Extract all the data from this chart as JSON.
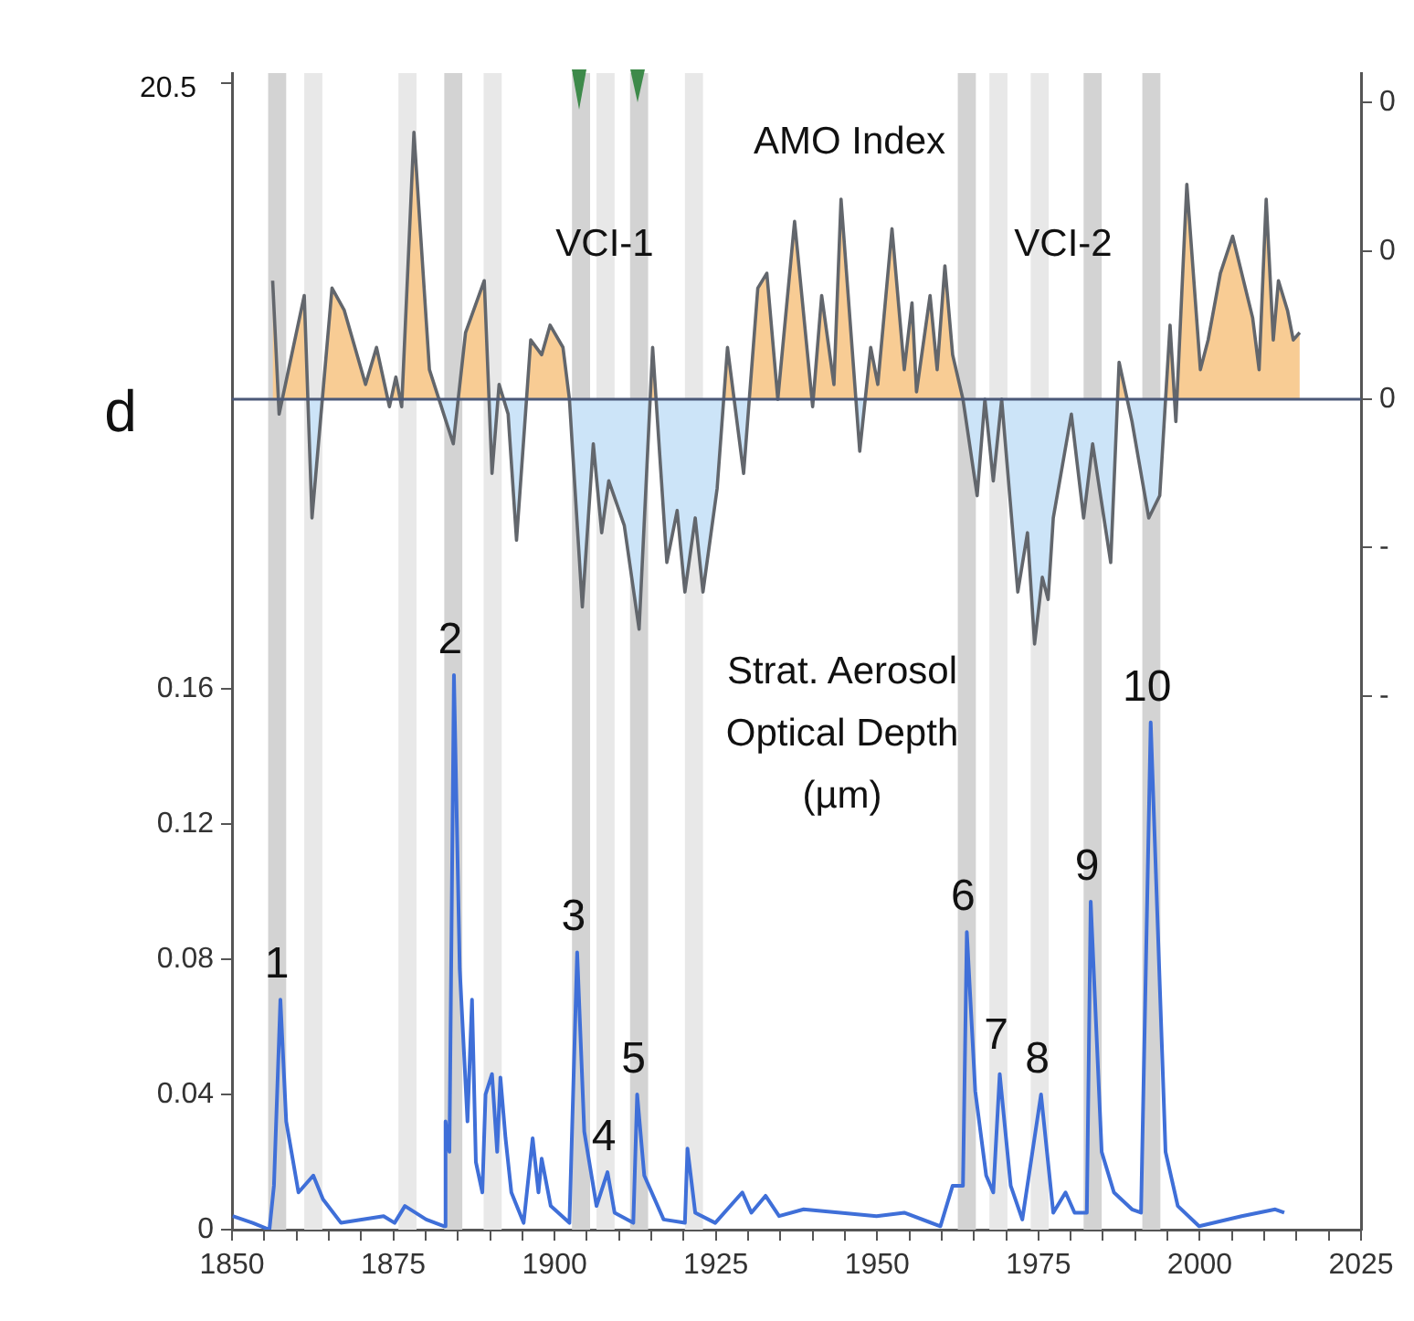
{
  "chart_data": {
    "type": "line",
    "annotations": [
      "d",
      "VCI-1",
      "VCI-2",
      "AMO Index",
      "Strat. Aerosol Optical Depth (µm)",
      "20.5",
      {
        "text": "1",
        "x": 1857.5,
        "y": 0.068
      },
      {
        "text": "2",
        "x": 1884.4,
        "y": 0.164
      },
      {
        "text": "3",
        "x": 1903.5,
        "y": 0.082
      },
      {
        "text": "4",
        "x": 1908.2,
        "y": 0.017
      },
      {
        "text": "5",
        "x": 1912.8,
        "y": 0.04
      },
      {
        "text": "6",
        "x": 1963.9,
        "y": 0.088
      },
      {
        "text": "7",
        "x": 1969,
        "y": 0.047
      },
      {
        "text": "8",
        "x": 1975.4,
        "y": 0.04
      },
      {
        "text": "9",
        "x": 1983.1,
        "y": 0.097
      },
      {
        "text": "10",
        "x": 1992.4,
        "y": 0.15
      }
    ],
    "xlim": [
      1850,
      2025
    ],
    "xticks": [
      1850,
      {
        "value": 1855,
        "label": null
      },
      {
        "value": 1860,
        "label": null
      },
      {
        "value": 1865,
        "label": null
      },
      {
        "value": 1870,
        "label": null
      },
      1875,
      {
        "value": 1880,
        "label": null
      },
      {
        "value": 1885,
        "label": null
      },
      {
        "value": 1890,
        "label": null
      },
      {
        "value": 1895,
        "label": null
      },
      1900,
      {
        "value": 1905,
        "label": null
      },
      {
        "value": 1910,
        "label": null
      },
      {
        "value": 1915,
        "label": null
      },
      {
        "value": 1920,
        "label": null
      },
      1925,
      {
        "value": 1930,
        "label": null
      },
      {
        "value": 1935,
        "label": null
      },
      {
        "value": 1940,
        "label": null
      },
      {
        "value": 1945,
        "label": null
      },
      1950,
      {
        "value": 1955,
        "label": null
      },
      {
        "value": 1960,
        "label": null
      },
      {
        "value": 1965,
        "label": null
      },
      {
        "value": 1970,
        "label": null
      },
      1975,
      {
        "value": 1980,
        "label": null
      },
      {
        "value": 1985,
        "label": null
      },
      {
        "value": 1990,
        "label": null
      },
      {
        "value": 1995,
        "label": null
      },
      2000,
      {
        "value": 2005,
        "label": null
      },
      {
        "value": 2010,
        "label": null
      },
      {
        "value": 2015,
        "label": null
      },
      {
        "value": 2020,
        "label": null
      },
      2025
    ],
    "ylim": [
      0,
      0.342
    ],
    "yticks": [
      0,
      0.04,
      0.08,
      0.12,
      0.16,
      {
        "value": 0.339,
        "label": null
      }
    ],
    "y2lim": [
      -1.12,
      0.44
    ],
    "y2ticks": [
      {
        "value": 0.4,
        "label": "0"
      },
      {
        "value": 0.2,
        "label": "0"
      },
      {
        "value": 0,
        "label": "0"
      },
      {
        "value": -0.2,
        "label": "-"
      },
      {
        "value": -0.4,
        "label": "-"
      }
    ],
    "grid": false,
    "legend": false,
    "marker": "none",
    "line_style": "solid",
    "ref_lines": [
      {
        "axis": "y2",
        "value": 0,
        "color": "#4a5878"
      }
    ],
    "bands": [
      {
        "axis": "x",
        "from": 1855.6,
        "to": 1858.4,
        "color": "#d3d3d3"
      },
      {
        "axis": "x",
        "from": 1861.2,
        "to": 1864,
        "color": "#e8e8e8"
      },
      {
        "axis": "x",
        "from": 1875.8,
        "to": 1878.6,
        "color": "#e8e8e8"
      },
      {
        "axis": "x",
        "from": 1882.9,
        "to": 1885.7,
        "color": "#d3d3d3"
      },
      {
        "axis": "x",
        "from": 1889,
        "to": 1891.8,
        "color": "#e8e8e8"
      },
      {
        "axis": "x",
        "from": 1902.7,
        "to": 1905.5,
        "color": "#d3d3d3"
      },
      {
        "axis": "x",
        "from": 1906.5,
        "to": 1909.3,
        "color": "#e8e8e8"
      },
      {
        "axis": "x",
        "from": 1911.7,
        "to": 1914.5,
        "color": "#d3d3d3"
      },
      {
        "axis": "x",
        "from": 1920.2,
        "to": 1923,
        "color": "#e8e8e8"
      },
      {
        "axis": "x",
        "from": 1962.5,
        "to": 1965.3,
        "color": "#d3d3d3"
      },
      {
        "axis": "x",
        "from": 1967.4,
        "to": 1970.2,
        "color": "#e8e8e8"
      },
      {
        "axis": "x",
        "from": 1973.8,
        "to": 1976.6,
        "color": "#e8e8e8"
      },
      {
        "axis": "x",
        "from": 1982,
        "to": 1984.8,
        "color": "#d3d3d3"
      },
      {
        "axis": "x",
        "from": 1991.1,
        "to": 1993.9,
        "color": "#d3d3d3"
      }
    ],
    "series": [
      {
        "color": "#3f6fd8",
        "x": [
          1850.1,
          1853.2,
          1855.8,
          1856.5,
          1857.5,
          1858.4,
          1860.3,
          1862.6,
          1864.1,
          1866.9,
          1873.5,
          1875.2,
          1876.8,
          1880.1,
          1882.9,
          1883.1,
          1883.7,
          1884.4,
          1885.3,
          1886.5,
          1887.2,
          1887.8,
          1888.8,
          1889.3,
          1890.3,
          1891.1,
          1891.6,
          1892.4,
          1893.3,
          1895.2,
          1896.6,
          1897.5,
          1898,
          1899.4,
          1902.3,
          1903.5,
          1904.6,
          1906.5,
          1908.2,
          1909.3,
          1912.2,
          1912.8,
          1913.9,
          1916.9,
          1920.2,
          1920.6,
          1921.8,
          1924.9,
          1929.1,
          1930.5,
          1932.7,
          1934.8,
          1938.6,
          1944.3,
          1949.9,
          1954.2,
          1959.8,
          1961.7,
          1963.3,
          1963.9,
          1965.2,
          1966.9,
          1968,
          1969,
          1970.7,
          1972.5,
          1975.4,
          1977.3,
          1979.2,
          1980.6,
          1982.5,
          1983.1,
          1984.8,
          1986.7,
          1989.5,
          1990.9,
          1992.4,
          1994.7,
          1996.6,
          1999.9,
          2006.5,
          2011.7,
          2013.1
        ],
        "values": [
          0.004,
          0.002,
          0,
          0.013,
          0.068,
          0.032,
          0.011,
          0.016,
          0.009,
          0.002,
          0.004,
          0.002,
          0.007,
          0.003,
          0.001,
          0.032,
          0.023,
          0.164,
          0.077,
          0.032,
          0.068,
          0.02,
          0.011,
          0.04,
          0.046,
          0.023,
          0.045,
          0.027,
          0.011,
          0.002,
          0.027,
          0.011,
          0.021,
          0.007,
          0.002,
          0.082,
          0.029,
          0.007,
          0.017,
          0.005,
          0.002,
          0.04,
          0.016,
          0.003,
          0.002,
          0.024,
          0.005,
          0.002,
          0.011,
          0.005,
          0.01,
          0.004,
          0.006,
          0.005,
          0.004,
          0.005,
          0.001,
          0.013,
          0.013,
          0.088,
          0.041,
          0.016,
          0.011,
          0.046,
          0.013,
          0.003,
          0.04,
          0.005,
          0.011,
          0.005,
          0.005,
          0.097,
          0.023,
          0.011,
          0.006,
          0.005,
          0.15,
          0.023,
          0.007,
          0.001,
          0.004,
          0.006,
          0.005
        ]
      },
      {
        "type": "area",
        "axis": "y2",
        "color": "#62666c",
        "x": [
          1856.3,
          1857.3,
          1861.2,
          1862.4,
          1865.5,
          1867.4,
          1870.7,
          1872.4,
          1874.4,
          1875.4,
          1876.3,
          1878.2,
          1880.6,
          1884.3,
          1886.2,
          1889.1,
          1890.3,
          1891.4,
          1892.8,
          1894.1,
          1896.3,
          1898,
          1899.3,
          1901.3,
          1902.3,
          1904.3,
          1906,
          1907.3,
          1908.4,
          1910.8,
          1913.1,
          1915.2,
          1917.4,
          1919,
          1920.2,
          1921.8,
          1923,
          1925.2,
          1926.8,
          1929.3,
          1931.5,
          1932.9,
          1934.6,
          1937.2,
          1940,
          1941.4,
          1943.3,
          1944.4,
          1947.3,
          1949,
          1950.1,
          1952.3,
          1954.2,
          1955.4,
          1956.1,
          1958.2,
          1959.3,
          1960.5,
          1961.7,
          1963.3,
          1965.5,
          1966.7,
          1968,
          1969.3,
          1971.8,
          1973.3,
          1974.4,
          1975.6,
          1976.5,
          1977.3,
          1980.1,
          1982,
          1983.4,
          1986.2,
          1987.5,
          1989.5,
          1992.1,
          1993.8,
          1995.4,
          1996.3,
          1998,
          2000.1,
          2001.3,
          2003.2,
          2005.1,
          2008.2,
          2009.2,
          2010.3,
          2011.4,
          2012.2,
          2013.6,
          2014.5,
          2015.5
        ],
        "values": [
          0.16,
          -0.02,
          0.14,
          -0.16,
          0.15,
          0.12,
          0.02,
          0.07,
          -0.01,
          0.03,
          -0.01,
          0.36,
          0.04,
          -0.06,
          0.09,
          0.16,
          -0.1,
          0.02,
          -0.02,
          -0.19,
          0.08,
          0.06,
          0.1,
          0.07,
          0,
          -0.28,
          -0.06,
          -0.18,
          -0.11,
          -0.17,
          -0.31,
          0.07,
          -0.22,
          -0.15,
          -0.26,
          -0.16,
          -0.26,
          -0.12,
          0.07,
          -0.1,
          0.15,
          0.17,
          0,
          0.24,
          -0.01,
          0.14,
          0.02,
          0.27,
          -0.07,
          0.07,
          0.02,
          0.23,
          0.04,
          0.13,
          0.01,
          0.14,
          0.04,
          0.18,
          0.06,
          0,
          -0.13,
          0,
          -0.11,
          0,
          -0.26,
          -0.18,
          -0.33,
          -0.24,
          -0.27,
          -0.16,
          -0.02,
          -0.16,
          -0.06,
          -0.22,
          0.05,
          -0.03,
          -0.16,
          -0.13,
          0.1,
          -0.03,
          0.29,
          0.04,
          0.08,
          0.17,
          0.22,
          0.11,
          0.04,
          0.27,
          0.08,
          0.16,
          0.12,
          0.08,
          0.09
        ]
      }
    ]
  }
}
